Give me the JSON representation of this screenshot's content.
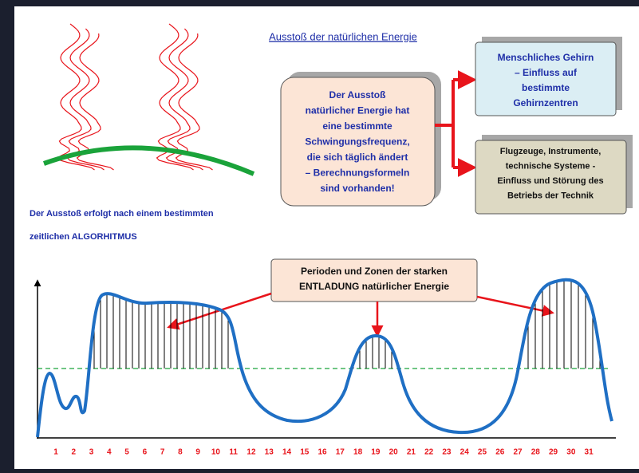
{
  "title": "Ausstoß der natürlichen Energie",
  "center_box": {
    "lines": [
      "Der Ausstoß",
      "natürlicher Energie hat",
      "eine bestimmte",
      "Schwingungsfrequenz,",
      "die sich täglich ändert",
      "– Berechnungsformeln",
      "sind vorhanden!"
    ]
  },
  "boxes": [
    {
      "lines": [
        "Menschliches Gehirn",
        "– Einfluss auf",
        "bestimmte",
        "Gehirnzentren"
      ]
    },
    {
      "lines": [
        "Flugzeuge, Instrumente,",
        "technische Systeme -",
        "Einfluss und Störung des",
        "Betriebs der Technik"
      ]
    }
  ],
  "note_lines": [
    "Der Ausstoß erfolgt nach einem bestimmten",
    "zeitlichen ALGORHITMUS"
  ],
  "callout": {
    "lines": [
      "Perioden und Zonen der starken",
      "ENTLADUNG natürlicher Energie"
    ]
  },
  "day_labels": [
    1,
    2,
    3,
    4,
    5,
    6,
    7,
    8,
    9,
    10,
    11,
    12,
    13,
    14,
    15,
    16,
    17,
    18,
    19,
    20,
    21,
    22,
    23,
    24,
    25,
    26,
    27,
    28,
    29,
    30,
    31
  ]
}
